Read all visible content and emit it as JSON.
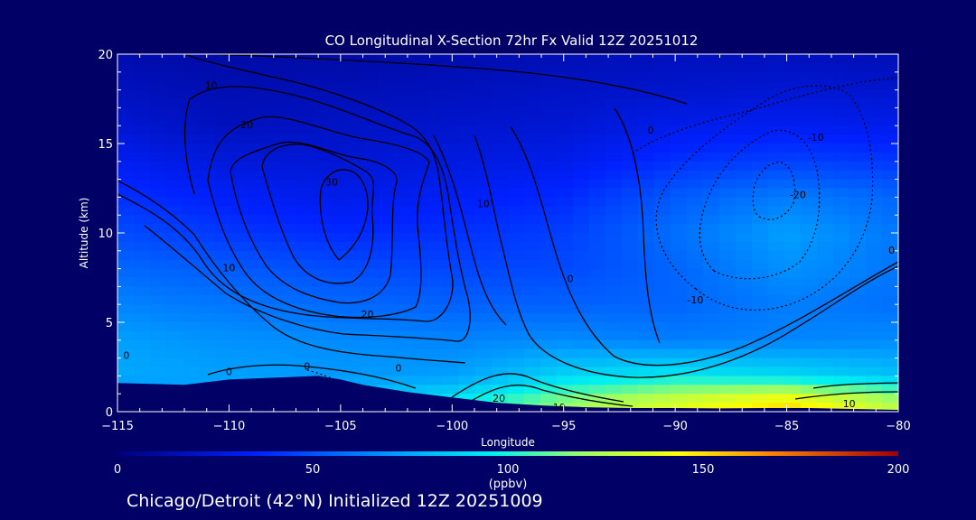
{
  "chart_data": {
    "type": "heatmap",
    "title": "CO Longitudinal X-Section 72hr  Fx Valid 12Z 20251012",
    "xlabel": "Longitude",
    "ylabel": "Altitude (km)",
    "xlim": [
      -115,
      -80
    ],
    "ylim": [
      0,
      20
    ],
    "x_ticks": [
      -115,
      -110,
      -105,
      -100,
      -95,
      -90,
      -85,
      -80
    ],
    "x_tick_labels": [
      "−115",
      "−110",
      "−105",
      "−100",
      "−95",
      "−90",
      "−85",
      "−80"
    ],
    "y_ticks": [
      0,
      5,
      10,
      15,
      20
    ],
    "y_tick_labels": [
      "0",
      "5",
      "10",
      "15",
      "20"
    ],
    "colorbar": {
      "min": 0,
      "max": 200,
      "ticks": [
        0,
        50,
        100,
        150,
        200
      ],
      "tick_labels": [
        "0",
        "50",
        "100",
        "150",
        "200"
      ],
      "unit": "(ppbv)"
    },
    "field_ppbv": {
      "x": [
        -115,
        -110,
        -105,
        -100,
        -95,
        -90,
        -85,
        -80
      ],
      "y": [
        0.5,
        2,
        4,
        6,
        8,
        10,
        12,
        14,
        16,
        18,
        20
      ],
      "z": [
        [
          60,
          75,
          85,
          95,
          118,
          135,
          150,
          125
        ],
        [
          75,
          72,
          70,
          72,
          88,
          95,
          90,
          82
        ],
        [
          72,
          68,
          66,
          64,
          66,
          62,
          64,
          66
        ],
        [
          64,
          60,
          56,
          54,
          54,
          55,
          62,
          58
        ],
        [
          56,
          52,
          48,
          46,
          47,
          55,
          68,
          60
        ],
        [
          48,
          42,
          38,
          40,
          44,
          58,
          72,
          60
        ],
        [
          40,
          34,
          30,
          33,
          38,
          52,
          62,
          55
        ],
        [
          32,
          26,
          24,
          27,
          30,
          40,
          45,
          42
        ],
        [
          24,
          18,
          20,
          22,
          24,
          30,
          32,
          30
        ],
        [
          18,
          15,
          16,
          18,
          20,
          22,
          24,
          22
        ],
        [
          14,
          12,
          12,
          14,
          16,
          18,
          18,
          16
        ]
      ]
    },
    "contour_labels": [
      {
        "text": "10",
        "lon": -110.8,
        "alt": 18.2
      },
      {
        "text": "20",
        "lon": -109.2,
        "alt": 16.0
      },
      {
        "text": "30",
        "lon": -105.4,
        "alt": 12.8
      },
      {
        "text": "10",
        "lon": -110.0,
        "alt": 8.0
      },
      {
        "text": "20",
        "lon": -103.8,
        "alt": 5.4
      },
      {
        "text": "10",
        "lon": -98.6,
        "alt": 11.6
      },
      {
        "text": "0",
        "lon": -91.1,
        "alt": 15.7
      },
      {
        "text": "0",
        "lon": -94.7,
        "alt": 7.4
      },
      {
        "text": "-10",
        "lon": -83.7,
        "alt": 15.3
      },
      {
        "text": "-20",
        "lon": -84.5,
        "alt": 12.1
      },
      {
        "text": "-10",
        "lon": -89.1,
        "alt": 6.2
      },
      {
        "text": "0",
        "lon": -80.3,
        "alt": 9.0
      },
      {
        "text": "0",
        "lon": -114.6,
        "alt": 3.1
      },
      {
        "text": "0",
        "lon": -110.0,
        "alt": 2.2
      },
      {
        "text": "0",
        "lon": -106.5,
        "alt": 2.5
      },
      {
        "text": "0",
        "lon": -102.4,
        "alt": 2.4
      },
      {
        "text": "20",
        "lon": -97.9,
        "alt": 0.7
      },
      {
        "text": "10",
        "lon": -95.2,
        "alt": 0.2
      },
      {
        "text": "10",
        "lon": -82.2,
        "alt": 0.4
      }
    ],
    "terrain": {
      "lon": [
        -115,
        -112,
        -110,
        -108,
        -106,
        -105,
        -104,
        -102,
        -100,
        -98,
        -96,
        -94,
        -92,
        -90,
        -88,
        -86,
        -84,
        -82,
        -80
      ],
      "alt": [
        1.6,
        1.5,
        1.8,
        1.9,
        2.0,
        1.8,
        1.5,
        1.1,
        0.8,
        0.5,
        0.35,
        0.25,
        0.2,
        0.2,
        0.18,
        0.2,
        0.2,
        0.15,
        0.1
      ]
    }
  },
  "footer_text": "Chicago/Detroit (42°N) Initialized 12Z 20251009",
  "colors": {
    "background": "#000066",
    "text": "#ffffff",
    "contour": "#000000",
    "terrain": "#000066"
  }
}
